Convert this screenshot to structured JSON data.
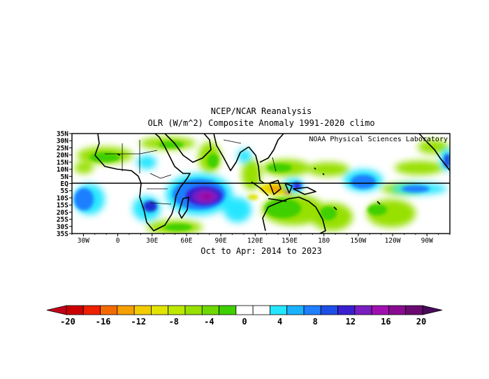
{
  "title": {
    "line1": "NCEP/NCAR Reanalysis",
    "line2": "OLR (W/m^2) Composite Anomaly 1991-2020 climo"
  },
  "subtitle": "Oct to Apr: 2014 to 2023",
  "credit": "NOAA Physical Sciences Laboratory",
  "map": {
    "lat_labels": [
      "35N",
      "30N",
      "25N",
      "20N",
      "15N",
      "10N",
      "5N",
      "EQ",
      "5S",
      "10S",
      "15S",
      "20S",
      "25S",
      "30S",
      "35S"
    ],
    "lon_labels": [
      "30W",
      "0",
      "30E",
      "60E",
      "90E",
      "120E",
      "150E",
      "180",
      "150W",
      "120W",
      "90W"
    ]
  },
  "colorbar": {
    "labels": [
      "-20",
      "-16",
      "-12",
      "-8",
      "-4",
      "0",
      "4",
      "8",
      "12",
      "16",
      "20"
    ],
    "colors": [
      "#cc0000",
      "#ee2000",
      "#f56a00",
      "#f6a000",
      "#f3cc00",
      "#e2e400",
      "#bde800",
      "#97e000",
      "#6fd800",
      "#3fcf00",
      "#ffffff",
      "#ffffff",
      "#26e6ff",
      "#1ab2ff",
      "#1f7fff",
      "#1d4fe6",
      "#3a1fd0",
      "#7a1ec0",
      "#a010b0",
      "#880a90",
      "#6a0a70"
    ],
    "under_color": "#c2001a",
    "over_color": "#4a0a5a"
  },
  "chart_data": {
    "type": "heatmap",
    "title": "NCEP/NCAR Reanalysis OLR (W/m^2) Composite Anomaly 1991-2020 climo",
    "variable": "OLR anomaly",
    "units": "W/m^2",
    "period": "Oct to Apr: 2014 to 2023",
    "lon_range": [
      -40,
      290
    ],
    "lat_range": [
      -35,
      35
    ],
    "color_range": [
      -20,
      20
    ],
    "contour_interval": 2,
    "anomaly_blobs": [
      {
        "name": "Indian Ocean positive",
        "lon": 73,
        "lat": -8,
        "peak": 16
      },
      {
        "name": "Indian Ocean positive (west)",
        "lon": 50,
        "lat": -3,
        "peak": 10
      },
      {
        "name": "East Africa positive",
        "lon": 35,
        "lat": -12,
        "peak": 8
      },
      {
        "name": "Atlantic positive",
        "lon": -32,
        "lat": -5,
        "peak": 8
      },
      {
        "name": "Maritime Continent negative",
        "lon": 137,
        "lat": -5,
        "peak": -12
      },
      {
        "name": "New Guinea positive",
        "lon": 148,
        "lat": -3,
        "peak": 12
      },
      {
        "name": "Central Pacific positive",
        "lon": 195,
        "lat": -4,
        "peak": 8
      },
      {
        "name": "Eastern Pacific positive",
        "lon": 210,
        "lat": 0,
        "peak": 7
      },
      {
        "name": "North Indian Ocean negative",
        "lon": 75,
        "lat": 10,
        "peak": -4
      },
      {
        "name": "South Pacific negative",
        "lon": 180,
        "lat": -18,
        "peak": -4
      }
    ]
  }
}
